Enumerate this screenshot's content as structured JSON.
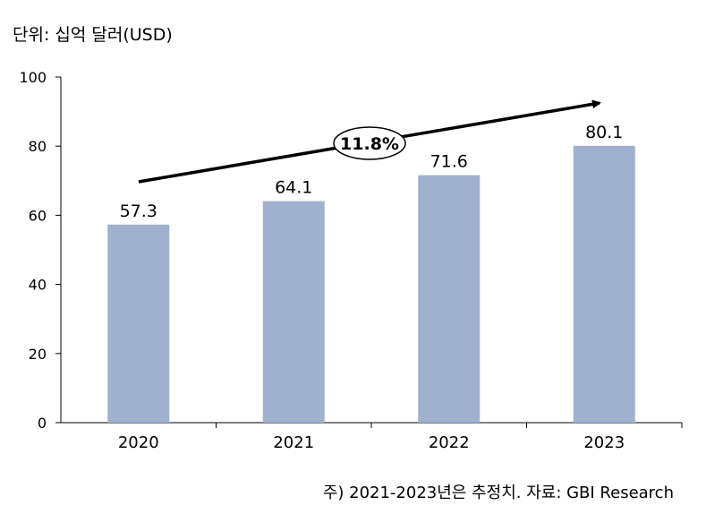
{
  "unit_label": "단위: 십억 달러(USD)",
  "footnote": "주) 2021-2023년은 추정치. 자료: GBI Research",
  "chart_data": {
    "type": "bar",
    "categories": [
      "2020",
      "2021",
      "2022",
      "2023"
    ],
    "values": [
      57.3,
      64.1,
      71.6,
      80.1
    ],
    "value_labels": [
      "57.3",
      "64.1",
      "71.6",
      "80.1"
    ],
    "ylim": [
      0,
      100
    ],
    "yticks": [
      0,
      20,
      40,
      60,
      80,
      100
    ],
    "title": "",
    "xlabel": "",
    "ylabel": "",
    "grid": false,
    "bar_color": "#9fb1cf",
    "annotation": {
      "text": "11.8%",
      "shape": "arrow-up-right"
    }
  }
}
